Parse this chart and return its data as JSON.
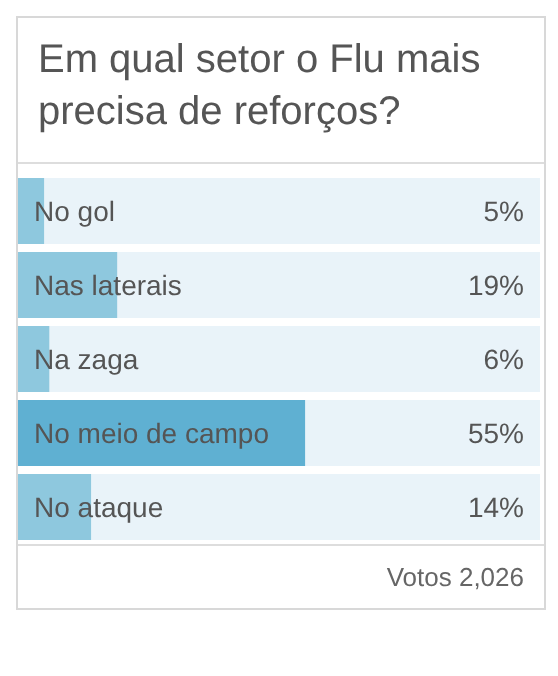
{
  "chart_data": {
    "type": "bar",
    "orientation": "horizontal",
    "title": "Em qual setor o Flu mais precisa de reforços?",
    "categories": [
      "No gol",
      "Nas laterais",
      "Na zaga",
      "No meio de campo",
      "No ataque"
    ],
    "values": [
      5,
      19,
      6,
      55,
      14
    ],
    "value_labels": [
      "5%",
      "19%",
      "6%",
      "55%",
      "14%"
    ],
    "colors": [
      "#8ec8de",
      "#8ec8de",
      "#8ec8de",
      "#5fb0d2",
      "#8ec8de"
    ],
    "xlim": [
      0,
      100
    ],
    "tick_labels": false,
    "annotations": [
      "Votos 2,026"
    ]
  }
}
